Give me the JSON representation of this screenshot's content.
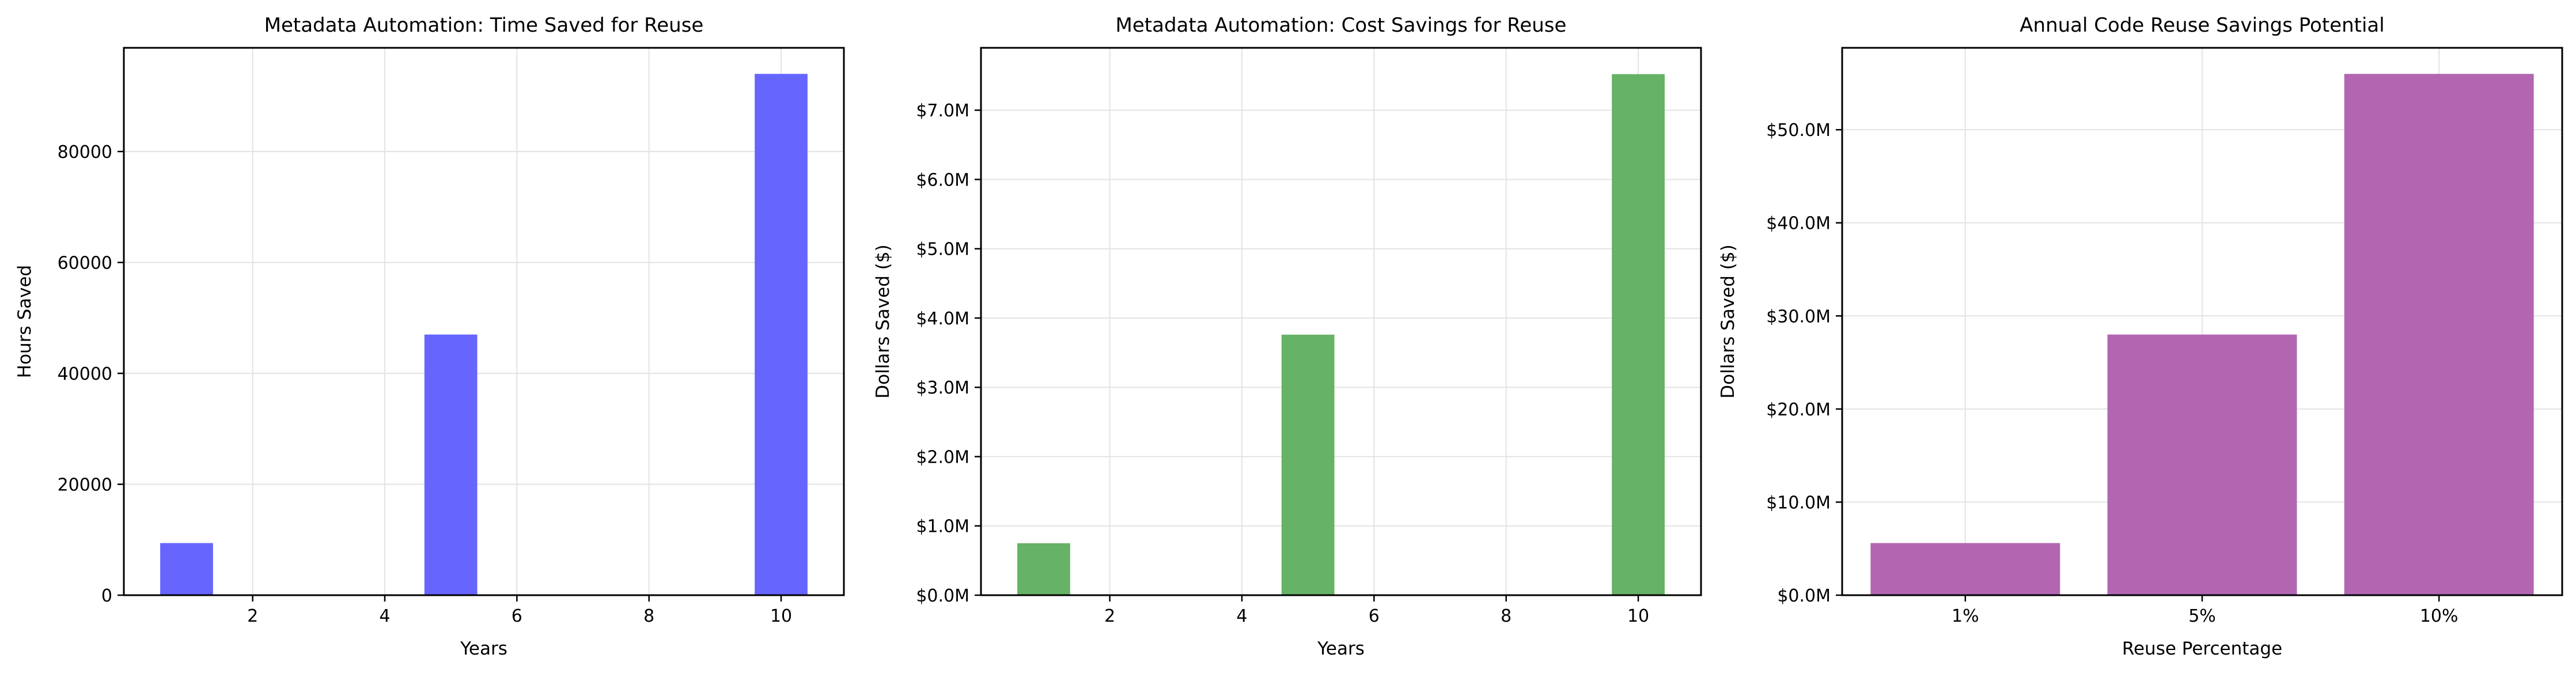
{
  "chart_data": [
    {
      "type": "bar",
      "title": "Metadata Automation: Time Saved for Reuse",
      "xlabel": "Years",
      "ylabel": "Hours Saved",
      "x": [
        1,
        5,
        10
      ],
      "values": [
        9400,
        47000,
        94000
      ],
      "xlim": [
        0.05,
        10.95
      ],
      "ylim": [
        0,
        98700
      ],
      "xticks": [
        2,
        4,
        6,
        8,
        10
      ],
      "xtick_labels": [
        "2",
        "4",
        "6",
        "8",
        "10"
      ],
      "yticks": [
        0,
        20000,
        40000,
        60000,
        80000
      ],
      "ytick_labels": [
        "0",
        "20000",
        "40000",
        "60000",
        "80000"
      ],
      "bar_width_units": 0.8,
      "color": "#6666ff",
      "grid": true,
      "legend": "none"
    },
    {
      "type": "bar",
      "title": "Metadata Automation: Cost Savings for Reuse",
      "xlabel": "Years",
      "ylabel": "Dollars Saved ($)",
      "x": [
        1,
        5,
        10
      ],
      "values": [
        750000,
        3760000,
        7520000
      ],
      "xlim": [
        0.05,
        10.95
      ],
      "ylim": [
        0,
        7900000
      ],
      "xticks": [
        2,
        4,
        6,
        8,
        10
      ],
      "xtick_labels": [
        "2",
        "4",
        "6",
        "8",
        "10"
      ],
      "yticks": [
        0,
        1000000,
        2000000,
        3000000,
        4000000,
        5000000,
        6000000,
        7000000
      ],
      "ytick_labels": [
        "$0.0M",
        "$1.0M",
        "$2.0M",
        "$3.0M",
        "$4.0M",
        "$5.0M",
        "$6.0M",
        "$7.0M"
      ],
      "bar_width_units": 0.8,
      "color": "#66b266",
      "grid": true,
      "legend": "none"
    },
    {
      "type": "bar",
      "title": "Annual Code Reuse Savings Potential",
      "xlabel": "Reuse Percentage",
      "ylabel": "Dollars Saved ($)",
      "categories": [
        "1%",
        "5%",
        "10%"
      ],
      "values": [
        5600000,
        28000000,
        56000000
      ],
      "xlim": [
        -0.52,
        2.52
      ],
      "ylim": [
        0,
        58800000
      ],
      "yticks": [
        0,
        10000000,
        20000000,
        30000000,
        40000000,
        50000000
      ],
      "ytick_labels": [
        "$0.0M",
        "$10.0M",
        "$20.0M",
        "$30.0M",
        "$40.0M",
        "$50.0M"
      ],
      "bar_width_units": 0.8,
      "color": "#b266b2",
      "grid": true,
      "legend": "none"
    }
  ]
}
